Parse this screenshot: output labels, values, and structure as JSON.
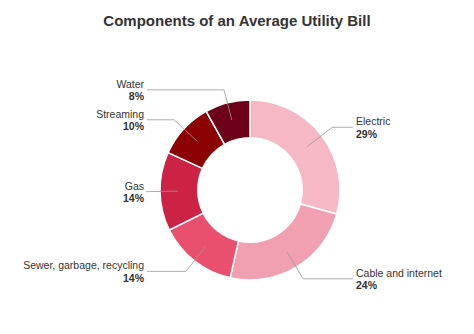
{
  "chart_data": {
    "type": "donut",
    "title": "Components of an Average Utility Bill",
    "categories": [
      "Electric",
      "Cable and internet",
      "Sewer, garbage, recycling",
      "Gas",
      "Streaming",
      "Water"
    ],
    "values": [
      29,
      24,
      14,
      14,
      10,
      8
    ],
    "value_labels": [
      "29%",
      "24%",
      "14%",
      "14%",
      "10%",
      "8%"
    ],
    "colors": [
      "#f5b8c4",
      "#f0a0b0",
      "#e8506e",
      "#cc2244",
      "#8b0000",
      "#6b0018"
    ],
    "data_labels": true
  }
}
